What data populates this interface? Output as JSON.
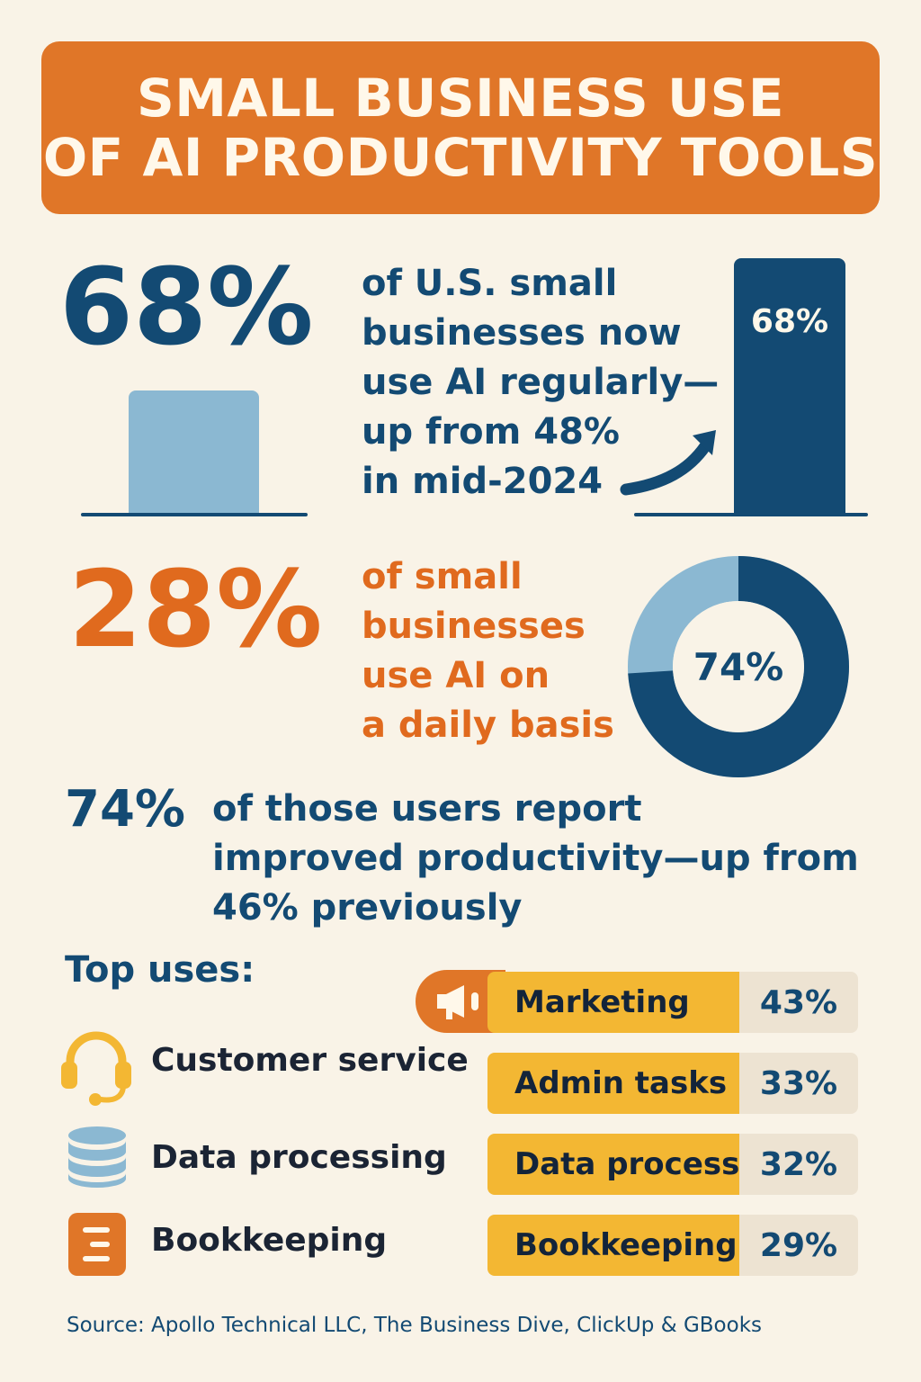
{
  "header": {
    "title_line1": "SMALL BUSINESS USE",
    "title_line2": "OF AI PRODUCTIVITY TOOLS"
  },
  "stat_regular": {
    "value": "68%",
    "text_lines": [
      "of U.S. small",
      "businesses now",
      "use AI regularly—",
      "up from 48%",
      "in mid-2024"
    ],
    "bar_label": "68%",
    "bar_value": 68,
    "previous_value": 48
  },
  "stat_daily": {
    "value": "28%",
    "text_lines": [
      "of small",
      "businesses",
      "use AI on",
      "a daily basis"
    ],
    "donut_label": "74%",
    "donut_value": 74
  },
  "stat_productivity": {
    "value": "74%",
    "text_lines": [
      "of those users report",
      "improved productivity—up from",
      "46% previously"
    ]
  },
  "top_uses": {
    "heading": "Top uses:",
    "list": [
      {
        "label": "Customer service",
        "icon": "headset-icon"
      },
      {
        "label": "Data processing",
        "icon": "database-icon"
      },
      {
        "label": "Bookkeeping",
        "icon": "ledger-icon"
      }
    ],
    "bars": [
      {
        "label": "Marketing",
        "value": "43%",
        "icon": "megaphone-icon"
      },
      {
        "label": "Admin tasks",
        "value": "33%"
      },
      {
        "label": "Data process",
        "value": "32%"
      },
      {
        "label": "Bookkeeping",
        "value": "29%"
      }
    ]
  },
  "colors": {
    "orange": "#e07628",
    "navy": "#134a73",
    "light_blue": "#8bb8d2",
    "yellow": "#f3b733",
    "background": "#f9f3e7"
  },
  "source": "Source: Apollo Technical LLC, The Business Dive, ClickUp & GBooks"
}
